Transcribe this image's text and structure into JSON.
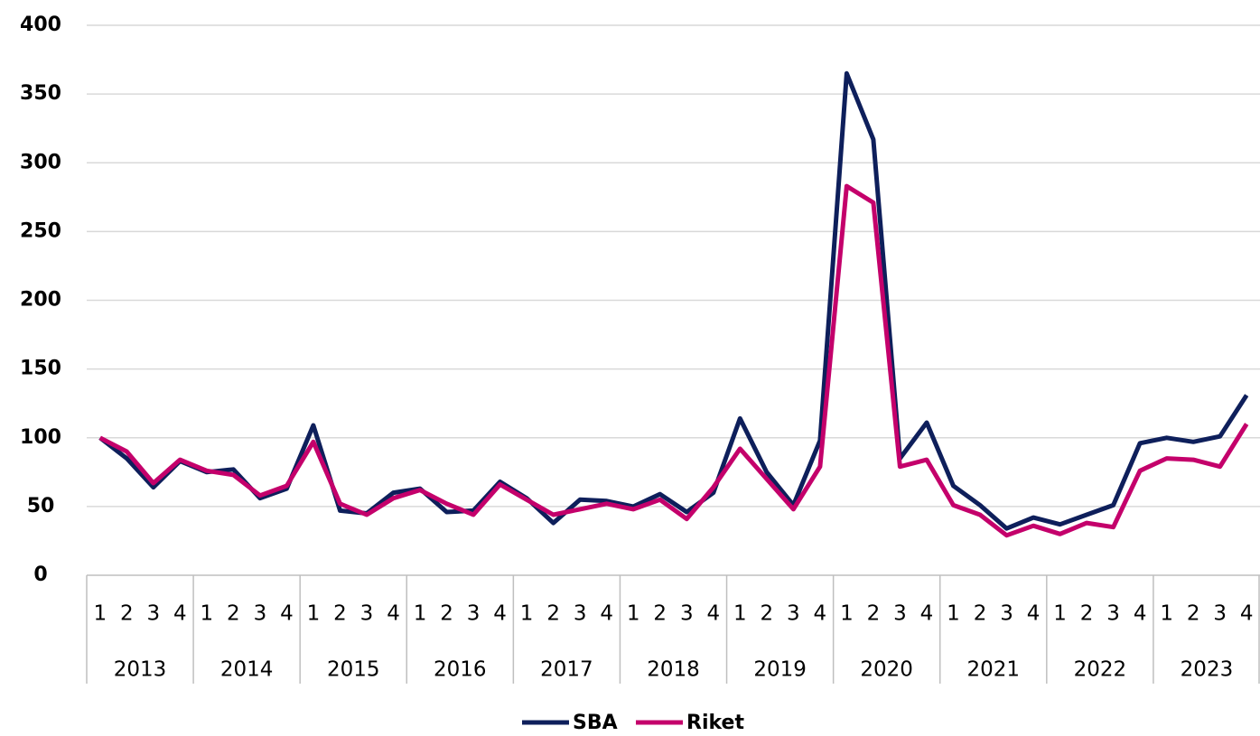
{
  "chart_data": {
    "type": "line",
    "categories": [
      "1",
      "2",
      "3",
      "4",
      "1",
      "2",
      "3",
      "4",
      "1",
      "2",
      "3",
      "4",
      "1",
      "2",
      "3",
      "4",
      "1",
      "2",
      "3",
      "4",
      "1",
      "2",
      "3",
      "4",
      "1",
      "2",
      "3",
      "4",
      "1",
      "2",
      "3",
      "4",
      "1",
      "2",
      "3",
      "4",
      "1",
      "2",
      "3",
      "4",
      "1",
      "2",
      "3",
      "4"
    ],
    "groups": [
      "2013",
      "2014",
      "2015",
      "2016",
      "2017",
      "2018",
      "2019",
      "2020",
      "2021",
      "2022",
      "2023"
    ],
    "series": [
      {
        "name": "SBA",
        "color": "#0e1f5b",
        "values": [
          100,
          85,
          64,
          83,
          75,
          77,
          56,
          63,
          109,
          47,
          45,
          60,
          63,
          46,
          47,
          68,
          56,
          38,
          55,
          54,
          50,
          59,
          46,
          60,
          114,
          75,
          51,
          98,
          365,
          317,
          85,
          111,
          65,
          51,
          34,
          42,
          37,
          44,
          51,
          96,
          100,
          97,
          101,
          131
        ]
      },
      {
        "name": "Riket",
        "color": "#c4006b",
        "values": [
          100,
          90,
          67,
          84,
          76,
          73,
          58,
          65,
          97,
          52,
          44,
          56,
          62,
          52,
          44,
          66,
          55,
          44,
          48,
          52,
          48,
          55,
          41,
          64,
          92,
          70,
          48,
          79,
          283,
          271,
          79,
          84,
          51,
          44,
          29,
          36,
          30,
          38,
          35,
          76,
          85,
          84,
          79,
          110
        ]
      }
    ],
    "ylim": [
      0,
      400
    ],
    "yticks": [
      0,
      50,
      100,
      150,
      200,
      250,
      300,
      350,
      400
    ],
    "grid": true,
    "legend": "bottom"
  }
}
